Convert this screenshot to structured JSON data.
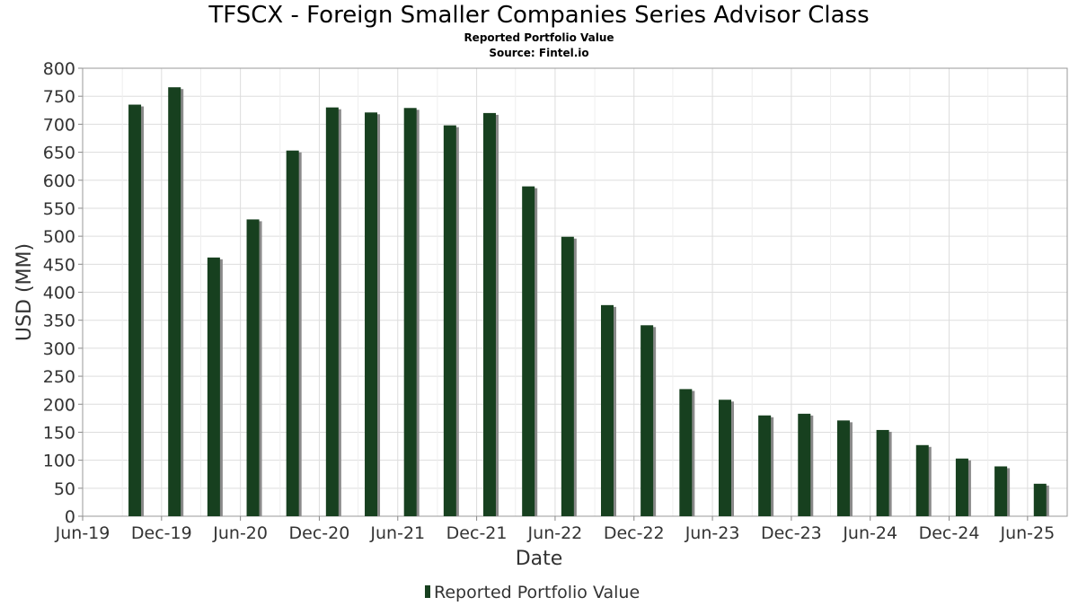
{
  "chart_data": {
    "type": "bar",
    "title": "TFSCX - Foreign Smaller Companies Series Advisor Class",
    "subtitle": "Reported Portfolio Value",
    "source": "Source: Fintel.io",
    "xlabel": "Date",
    "ylabel": "USD (MM)",
    "ylim": [
      0,
      800
    ],
    "yticks": [
      0,
      50,
      100,
      150,
      200,
      250,
      300,
      350,
      400,
      450,
      500,
      550,
      600,
      650,
      700,
      750,
      800
    ],
    "xlim": [
      "2019-06-01",
      "2025-09-01"
    ],
    "xtick_labels": [
      "Jun-19",
      "Dec-19",
      "Jun-20",
      "Dec-20",
      "Jun-21",
      "Dec-21",
      "Jun-22",
      "Dec-22",
      "Jun-23",
      "Dec-23",
      "Jun-24",
      "Dec-24",
      "Jun-25"
    ],
    "xtick_dates": [
      "2019-06-01",
      "2019-12-01",
      "2020-06-01",
      "2020-12-01",
      "2021-06-01",
      "2021-12-01",
      "2022-06-01",
      "2022-12-01",
      "2023-06-01",
      "2023-12-01",
      "2024-06-01",
      "2024-12-01",
      "2025-06-01"
    ],
    "grid": true,
    "legend_position": "bottom-center",
    "series": [
      {
        "name": "Reported Portfolio Value",
        "color": "#17401f",
        "x": [
          "2019-09-30",
          "2019-12-31",
          "2020-03-31",
          "2020-06-30",
          "2020-09-30",
          "2020-12-31",
          "2021-03-31",
          "2021-06-30",
          "2021-09-30",
          "2021-12-31",
          "2022-03-31",
          "2022-06-30",
          "2022-09-30",
          "2022-12-31",
          "2023-03-31",
          "2023-06-30",
          "2023-09-30",
          "2023-12-31",
          "2024-03-31",
          "2024-06-30",
          "2024-09-30",
          "2024-12-31",
          "2025-03-31",
          "2025-06-30"
        ],
        "values": [
          735,
          766,
          462,
          530,
          653,
          730,
          721,
          729,
          698,
          720,
          589,
          499,
          377,
          341,
          227,
          208,
          180,
          183,
          171,
          154,
          127,
          103,
          89,
          58
        ]
      }
    ]
  }
}
